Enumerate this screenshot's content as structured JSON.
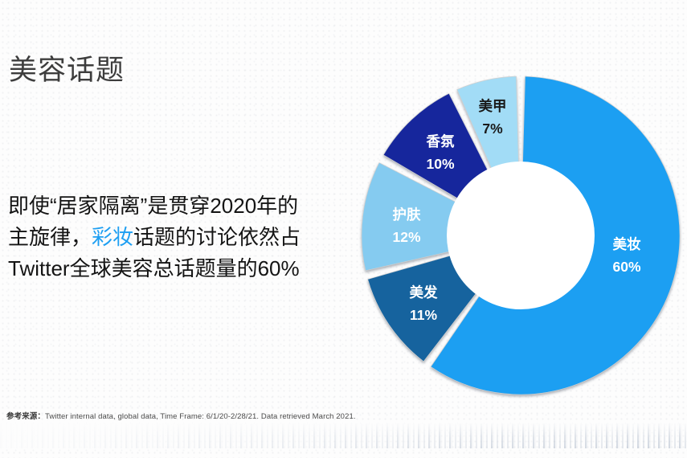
{
  "slide": {
    "title": "美容话题",
    "body": {
      "line1": "即使“居家隔离”是贯穿2020年的",
      "line2_pre": "主旋律，",
      "highlight": "彩妆",
      "line2_post": "话题的讨论依然占",
      "line3": "Twitter全球美容总话题量的60%"
    },
    "footer": {
      "label": "参考来源：",
      "text": "Twitter internal data, global data, Time Frame: 6/1/20-2/28/21. Data retrieved March 2021."
    },
    "accent_color": "#1E9FF2"
  },
  "chart_data": {
    "type": "pie",
    "subtype": "donut",
    "unit": "%",
    "start_angle_deg": 0,
    "clockwise": true,
    "inner_radius_ratio": 0.465,
    "legend": "labels-inside-slices",
    "categories": [
      "美妆",
      "美发",
      "护肤",
      "香氛",
      "美甲"
    ],
    "values": [
      60,
      11,
      12,
      10,
      7
    ],
    "segments": [
      {
        "label": "美妆",
        "value": 60,
        "color": "#1E9FF2",
        "text_color": "#FFFFFF"
      },
      {
        "label": "美发",
        "value": 11,
        "color": "#13639E",
        "text_color": "#FFFFFF"
      },
      {
        "label": "护肤",
        "value": 12,
        "color": "#85CBF0",
        "text_color": "#FFFFFF"
      },
      {
        "label": "香氛",
        "value": 10,
        "color": "#14289C",
        "text_color": "#FFFFFF"
      },
      {
        "label": "美甲",
        "value": 7,
        "color": "#A2DCF6",
        "text_color": "#1A1A1A"
      }
    ]
  }
}
